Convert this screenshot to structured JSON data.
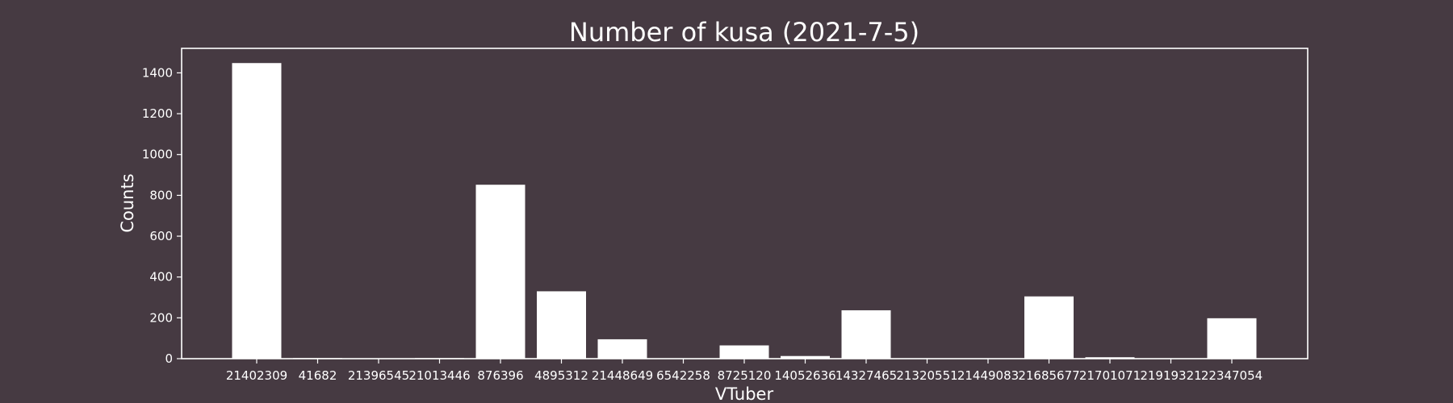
{
  "chart_data": {
    "type": "bar",
    "title": "Number of kusa (2021-7-5)",
    "xlabel": "VTuber",
    "ylabel": "Counts",
    "ylim": [
      0,
      1520
    ],
    "yticks": [
      0,
      200,
      400,
      600,
      800,
      1000,
      1200,
      1400
    ],
    "grid": false,
    "categories": [
      "21402309",
      "41682",
      "21396545",
      "21013446",
      "876396",
      "4895312",
      "21448649",
      "6542258",
      "8725120",
      "14052636",
      "14327465",
      "21320551",
      "21449083",
      "21685677",
      "21701071",
      "21919321",
      "22347054"
    ],
    "values": [
      1448,
      3,
      0,
      3,
      852,
      330,
      95,
      0,
      65,
      13,
      237,
      2,
      2,
      305,
      7,
      0,
      198
    ]
  },
  "colors": {
    "background": "#463a42",
    "bar": "#ffffff",
    "axis": "#ffffff",
    "text": "#ffffff"
  }
}
